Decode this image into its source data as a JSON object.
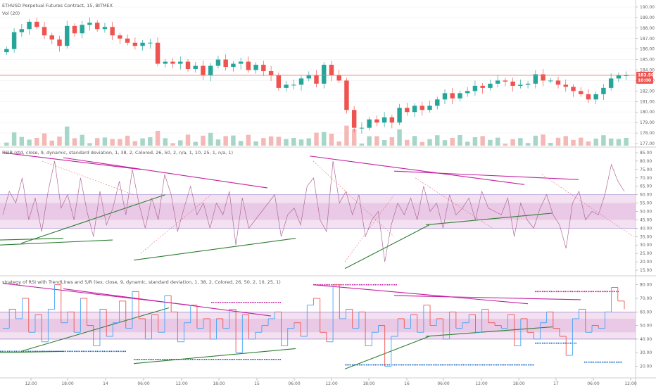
{
  "window": {
    "title": "ETHUSD Perpetual Futures Contract, 15, BITMEX",
    "volume_label": "Vol (20)"
  },
  "panes": {
    "rsi": {
      "title": "RSIB (std, close, 9, dynamic, standard deviation, 1, 38, 2, Colored, 26,   50, 2, n/a, 1, 10,   25, 1, n/a, 1)"
    },
    "strategy": {
      "title": "strategy of RSI with TrendLines and S/R (tex, close, 9, dynamic, standard deviation, 1, 38, 2, Colored, 26,   50, 2, 10,   25, 1)"
    }
  },
  "colors": {
    "candle_up": "#26a69a",
    "candle_down": "#ef5350",
    "price_line": "#e57373",
    "rsi_line": "#b06a9a",
    "band_fill": "#e9c6e6",
    "trend_magenta": "#c41ea0",
    "trend_green": "#2e7d32",
    "sr_blue": "#1565c0",
    "price_tag_bg": "#ef5350"
  },
  "chart_data": [
    {
      "type": "candlestick",
      "title": "ETHUSD Perpetual Futures Contract, 15, BITMEX",
      "y_ticks": [
        "190.00",
        "189.00",
        "188.00",
        "187.00",
        "186.00",
        "185.00",
        "184.00",
        "183.00",
        "182.00",
        "181.00",
        "180.00",
        "179.00",
        "178.00",
        "177.00"
      ],
      "ylim": [
        176.8,
        190.4
      ],
      "x_ticks": [
        "12:00",
        "18:00",
        "14",
        "06:00",
        "12:00",
        "18:00",
        "15",
        "06:00",
        "12:00",
        "18:00",
        "16",
        "06:00",
        "12:00",
        "18:00",
        "17",
        "06:00",
        "12:00"
      ],
      "current_price": "183.50",
      "countdown": "10:00",
      "close": [
        186.0,
        187.6,
        187.9,
        188.6,
        188.1,
        187.3,
        186.9,
        186.3,
        188.2,
        187.5,
        188.3,
        188.5,
        187.9,
        188.1,
        187.3,
        187.0,
        186.6,
        186.3,
        186.6,
        186.6,
        184.6,
        184.8,
        184.6,
        184.8,
        184.1,
        184.4,
        183.5,
        184.4,
        185.0,
        184.3,
        184.6,
        184.8,
        184.0,
        184.5,
        183.9,
        183.5,
        182.3,
        182.6,
        182.6,
        183.2,
        183.5,
        182.7,
        184.5,
        183.5,
        183.0,
        180.2,
        178.5,
        178.5,
        179.3,
        179.0,
        179.5,
        179.0,
        180.4,
        180.0,
        180.6,
        180.2,
        180.6,
        181.2,
        181.8,
        181.3,
        181.8,
        182.0,
        182.5,
        182.3,
        182.7,
        183.0,
        182.9,
        182.5,
        182.6,
        182.7,
        183.6,
        183.0,
        183.0,
        182.6,
        182.4,
        182.0,
        181.7,
        181.2,
        181.7,
        182.3,
        183.2,
        183.5,
        183.5
      ],
      "volume_scale": "relative"
    },
    {
      "type": "line",
      "title": "RSIB (std, close, 9, dynamic, standard deviation, 1, 38, 2, Colored, 26,   50, 2, n/a, 1, 10,   25, 1, n/a, 1)",
      "y_ticks": [
        "85.00",
        "80.00",
        "75.00",
        "70.00",
        "65.00",
        "60.00",
        "55.00",
        "50.00",
        "45.00",
        "40.00",
        "35.00",
        "30.00",
        "25.00",
        "20.00",
        "15.00"
      ],
      "ylim": [
        12.5,
        87.5
      ],
      "band": [
        40,
        60
      ],
      "inner_band": [
        45,
        55
      ],
      "trendlines": "magenta resistance and green support lines",
      "series": [
        {
          "name": "",
          "values": [
            48,
            62,
            55,
            70,
            45,
            58,
            38,
            62,
            80,
            52,
            60,
            45,
            70,
            50,
            35,
            62,
            42,
            52,
            68,
            48,
            75,
            55,
            40,
            58,
            45,
            72,
            60,
            38,
            52,
            65,
            48,
            55,
            40,
            55,
            48,
            62,
            30,
            58,
            40,
            45,
            50,
            55,
            60,
            35,
            48,
            52,
            42,
            65,
            70,
            45,
            38,
            80,
            55,
            62,
            48,
            60,
            35,
            45,
            50,
            20,
            42,
            55,
            48,
            58,
            45,
            65,
            50,
            55,
            40,
            60,
            48,
            52,
            58,
            45,
            62,
            52,
            50,
            48,
            58,
            35,
            55,
            45,
            40,
            52,
            60,
            48,
            42,
            28,
            55,
            62,
            45,
            50,
            48,
            60,
            78,
            68,
            62
          ]
        }
      ]
    },
    {
      "type": "step",
      "title": "strategy of RSI with TrendLines and S/R (tex, close, 9, dynamic, standard deviation, 1, 38, 2, Colored, 26,   50, 2, 10,   25, 1)",
      "y_ticks": [
        "80.00",
        "70.00",
        "60.00",
        "50.00",
        "40.00",
        "30.00",
        "20.00"
      ],
      "ylim": [
        12.5,
        85.0
      ],
      "band": [
        40,
        60
      ],
      "series": [
        {
          "name": "",
          "values": [
            48,
            62,
            55,
            70,
            45,
            58,
            38,
            62,
            80,
            52,
            60,
            45,
            70,
            50,
            35,
            62,
            42,
            52,
            68,
            48,
            75,
            55,
            40,
            58,
            45,
            72,
            60,
            38,
            52,
            65,
            48,
            55,
            40,
            55,
            48,
            62,
            30,
            58,
            40,
            45,
            50,
            55,
            60,
            35,
            48,
            52,
            42,
            65,
            70,
            45,
            38,
            80,
            55,
            62,
            48,
            60,
            35,
            45,
            50,
            20,
            42,
            55,
            48,
            58,
            45,
            65,
            50,
            55,
            40,
            60,
            48,
            52,
            58,
            45,
            62,
            52,
            50,
            48,
            58,
            35,
            55,
            45,
            40,
            52,
            60,
            48,
            42,
            28,
            55,
            62,
            45,
            50,
            48,
            60,
            78,
            68,
            62
          ]
        }
      ]
    }
  ]
}
